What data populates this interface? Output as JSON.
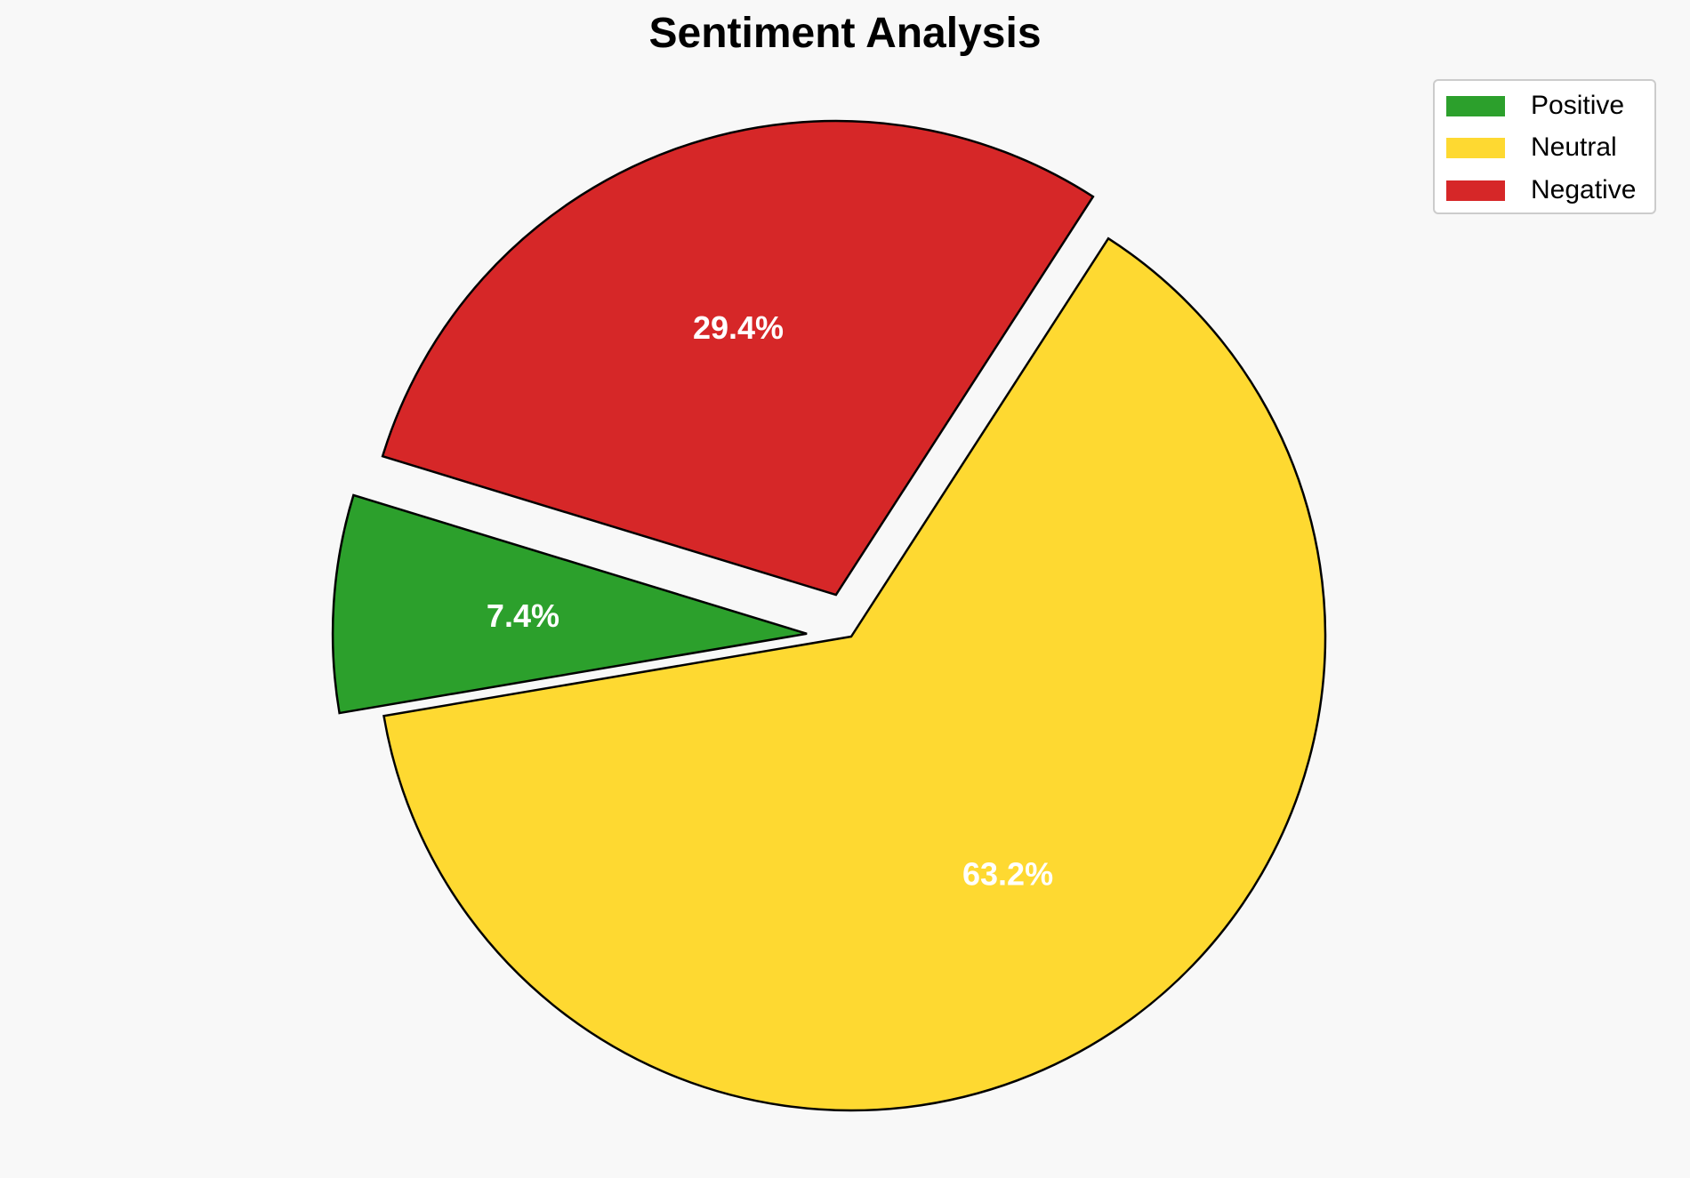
{
  "chart_data": {
    "type": "pie",
    "title": "Sentiment Analysis",
    "slices": [
      {
        "label": "Positive",
        "value": 7.4,
        "display": "7.4%",
        "color": "#2ca02c",
        "exploded": true
      },
      {
        "label": "Neutral",
        "value": 63.2,
        "display": "63.2%",
        "color": "#fed931",
        "exploded": false
      },
      {
        "label": "Negative",
        "value": 29.4,
        "display": "29.4%",
        "color": "#d62728",
        "exploded": true
      }
    ],
    "legend_position": "top-right",
    "label_color": "#ffffff",
    "edge_color": "#000000"
  }
}
